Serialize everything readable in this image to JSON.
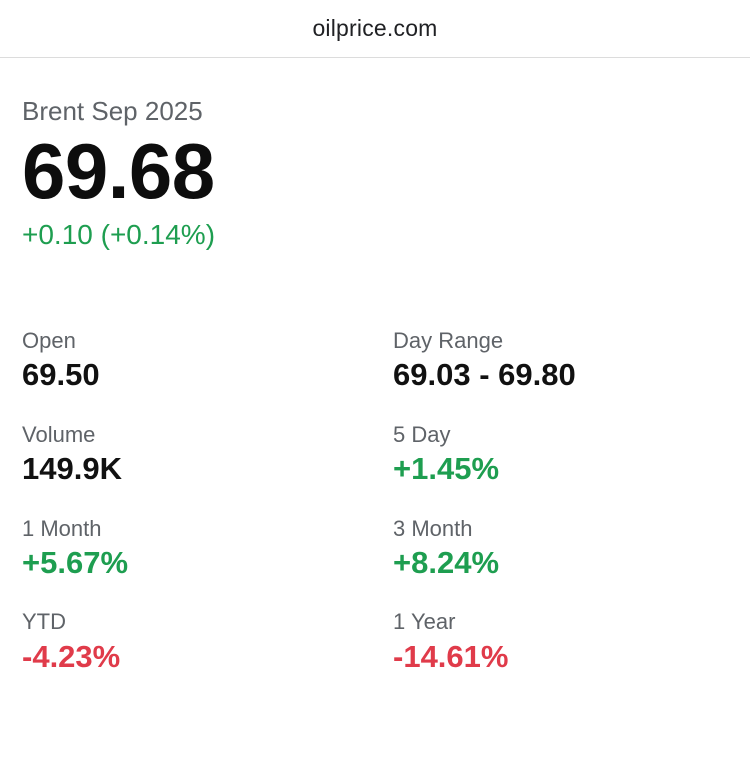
{
  "header": {
    "domain": "oilprice.com"
  },
  "quote": {
    "instrument": "Brent Sep 2025",
    "price": "69.68",
    "change": "+0.10 (+0.14%)"
  },
  "stats": [
    {
      "label": "Open",
      "value": "69.50",
      "trend": "neutral"
    },
    {
      "label": "Day Range",
      "value": "69.03 - 69.80",
      "trend": "neutral"
    },
    {
      "label": "Volume",
      "value": "149.9K",
      "trend": "neutral"
    },
    {
      "label": "5 Day",
      "value": "+1.45%",
      "trend": "up"
    },
    {
      "label": "1 Month",
      "value": "+5.67%",
      "trend": "up"
    },
    {
      "label": "3 Month",
      "value": "+8.24%",
      "trend": "up"
    },
    {
      "label": "YTD",
      "value": "-4.23%",
      "trend": "down"
    },
    {
      "label": "1 Year",
      "value": "-14.61%",
      "trend": "down"
    }
  ],
  "colors": {
    "up": "#1e9e50",
    "down": "#e03b4a",
    "label": "#5f6368"
  }
}
